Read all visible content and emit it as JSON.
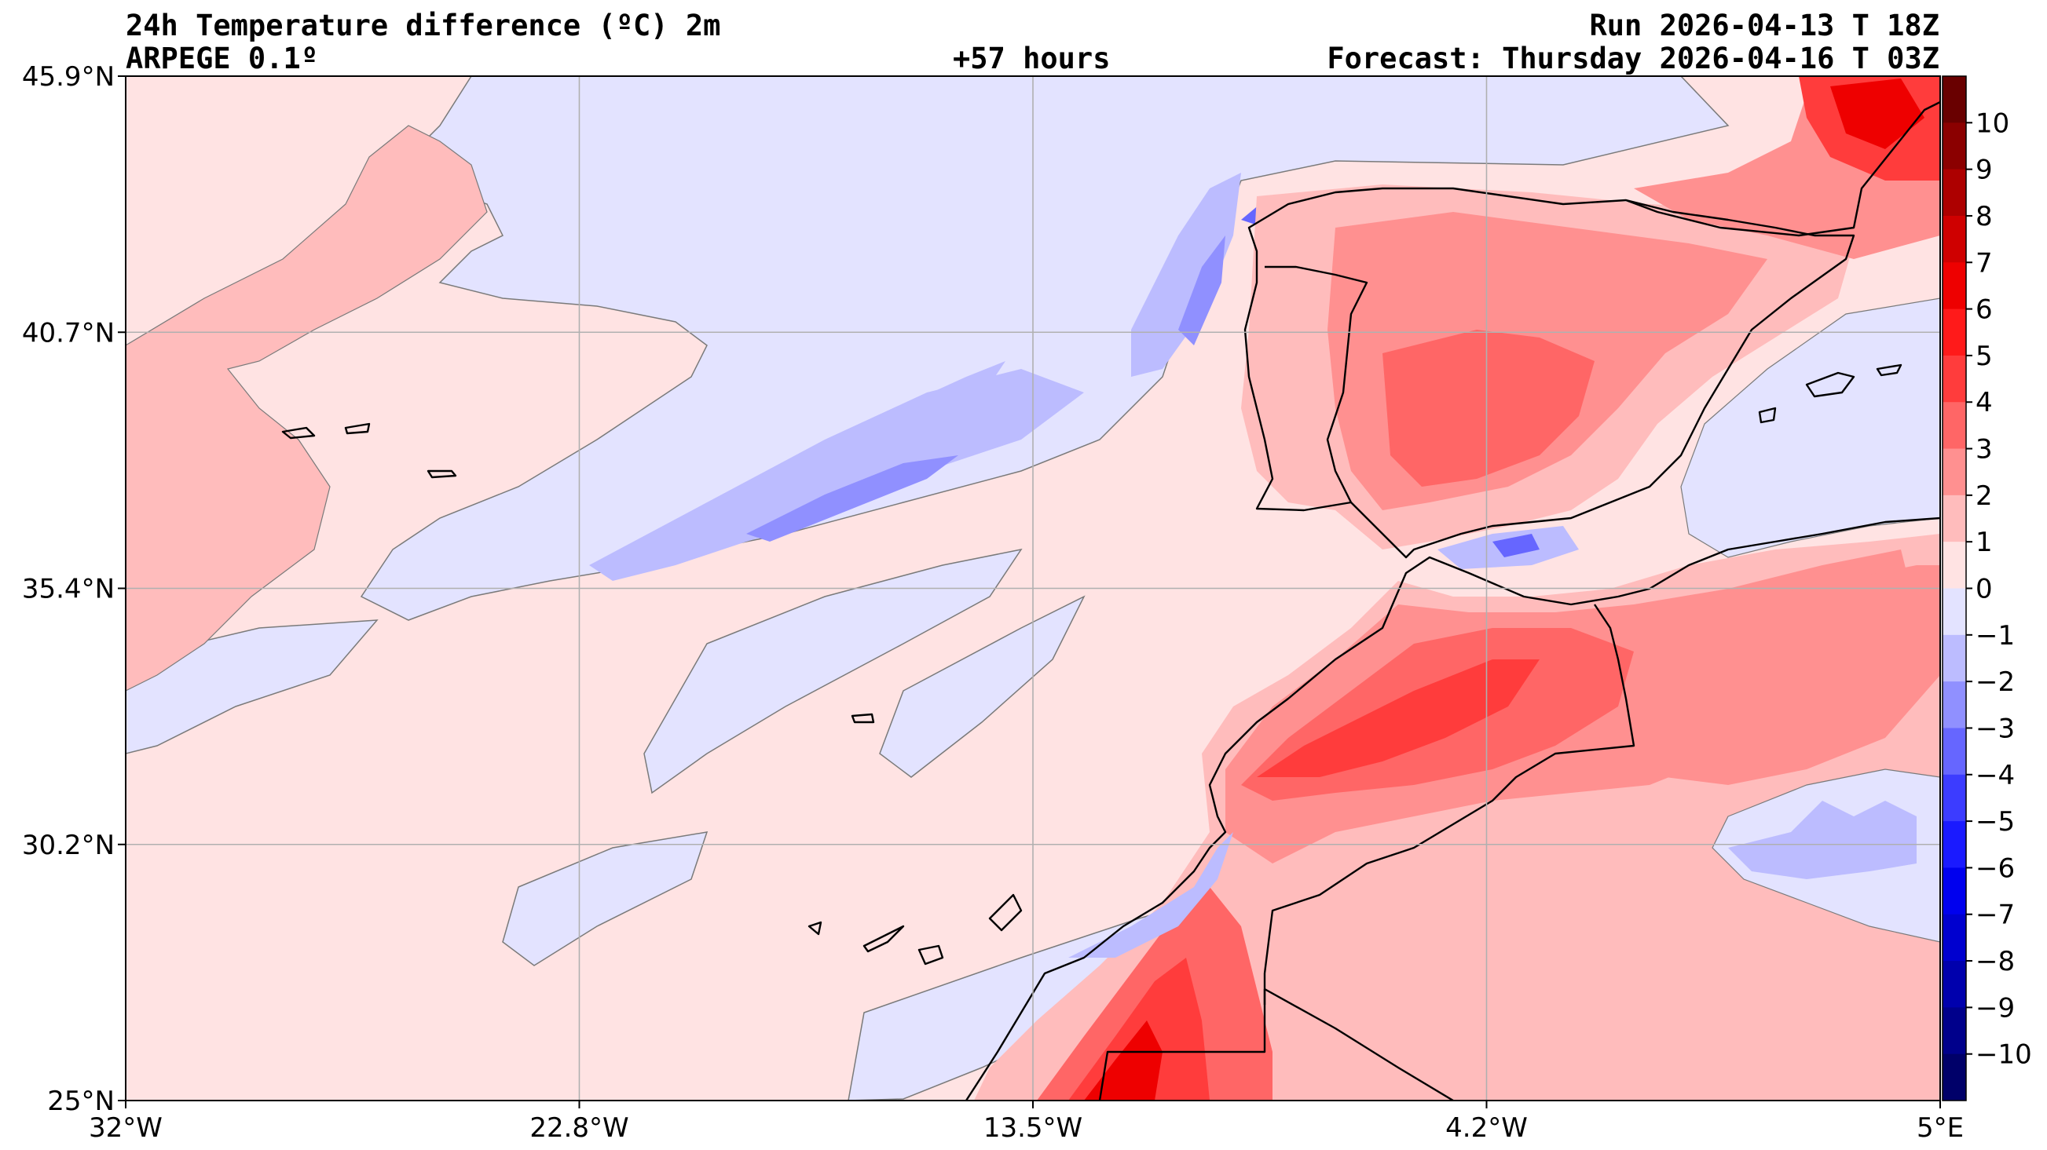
{
  "header": {
    "title": "24h Temperature difference (ºC) 2m",
    "model": "ARPEGE 0.1º",
    "run": "Run 2026-04-13 T 18Z",
    "lead": "+57 hours",
    "forecast": "Forecast: Thursday 2026-04-16 T 03Z"
  },
  "map": {
    "lon_range": [
      -32,
      5
    ],
    "lat_range": [
      25,
      45.9
    ],
    "x_ticks": [
      "32°W",
      "22.8°W",
      "13.5°W",
      "4.2°W",
      "5°E"
    ],
    "y_ticks": [
      "45.9°N",
      "40.7°N",
      "35.4°N",
      "30.2°N",
      "25°N"
    ],
    "grid": true,
    "background_field": "temperature difference shading",
    "coastline_color": "#000000"
  },
  "colorbar": {
    "labels": [
      "10",
      "9",
      "8",
      "7",
      "6",
      "5",
      "4",
      "3",
      "2",
      "1",
      "0",
      "−1",
      "−2",
      "−3",
      "−4",
      "−5",
      "−6",
      "−7",
      "−8",
      "−9",
      "−10"
    ],
    "colors": [
      "#690000",
      "#8b0000",
      "#ad0000",
      "#cf0000",
      "#ee0000",
      "#ff1a1a",
      "#ff3c3c",
      "#ff6666",
      "#ff9090",
      "#ffbcbc",
      "#ffe3e3",
      "#e3e3ff",
      "#bcbcff",
      "#9090ff",
      "#6666ff",
      "#3c3cff",
      "#1a1aff",
      "#0000ee",
      "#0000cf",
      "#0000ad",
      "#00008b",
      "#000069"
    ]
  }
}
